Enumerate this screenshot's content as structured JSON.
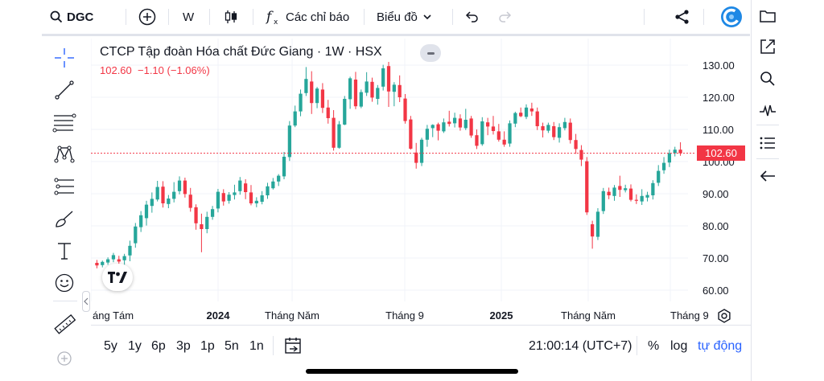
{
  "topbar": {
    "symbol": "DGC",
    "interval": "W",
    "indicators_label": "Các chỉ báo",
    "layout_label": "Biểu đồ"
  },
  "legend": {
    "title": "CTCP Tập đoàn Hóa chất Đức Giang · 1W · HSX",
    "last": "102.60",
    "change": "−1.10",
    "change_pct": "(−1.06%)"
  },
  "price_tag": "102.60",
  "logo_text": "𝟕𝐕",
  "bottombar": {
    "ranges": [
      "5y",
      "1y",
      "6p",
      "3p",
      "1p",
      "5n",
      "1n"
    ],
    "clock": "21:00:14 (UTC+7)",
    "percent_label": "%",
    "log_label": "log",
    "auto_label": "tự động"
  },
  "colors": {
    "up": "#26a69a",
    "down": "#f23645",
    "text": "#131722",
    "grid": "#f0f3fa",
    "brand": "#2962ff"
  },
  "icons": {
    "left_tools": [
      "crosshair-icon",
      "trendline-icon",
      "fib-retracement-icon",
      "pattern-icon",
      "projection-icon",
      "brush-icon",
      "text-icon",
      "emoji-icon",
      "ruler-icon",
      "zoom-in-icon"
    ],
    "right_tools": [
      "folder-icon",
      "external-link-icon",
      "search-icon",
      "pulse-icon",
      "list-icon",
      "arrow-left-icon"
    ]
  },
  "chart_data": {
    "type": "candlestick",
    "title": "CTCP Tập đoàn Hóa chất Đức Giang · 1W · HSX",
    "y_ticks": [
      "130.00",
      "120.00",
      "110.00",
      "100.00",
      "90.00",
      "80.00",
      "70.00",
      "60.00"
    ],
    "ylim": [
      57.5,
      132.5
    ],
    "x_labels": [
      "áng Tám",
      "2024",
      "Tháng Năm",
      "Tháng 9",
      "2025",
      "Tháng Năm",
      "Tháng 9"
    ],
    "last_price": 102.6,
    "grid": true,
    "candles": [
      [
        68.5,
        69.4,
        66.8,
        67.7
      ],
      [
        67.8,
        69.2,
        67.1,
        68.8
      ],
      [
        68.6,
        70.2,
        67.9,
        69.6
      ],
      [
        69.6,
        71.6,
        68.7,
        70.9
      ],
      [
        69.6,
        70.7,
        68.1,
        68.9
      ],
      [
        69.3,
        71.3,
        67.5,
        70.6
      ],
      [
        70.8,
        75.4,
        69.0,
        73.8
      ],
      [
        74.6,
        80.9,
        73.2,
        79.8
      ],
      [
        79.6,
        84.6,
        78.1,
        83.3
      ],
      [
        82.4,
        87.8,
        80.1,
        86.6
      ],
      [
        86.2,
        90.4,
        84.1,
        88.4
      ],
      [
        88.2,
        94.0,
        87.6,
        92.1
      ],
      [
        92.2,
        93.9,
        85.7,
        87.0
      ],
      [
        86.8,
        89.6,
        85.5,
        88.5
      ],
      [
        88.4,
        93.6,
        87.3,
        90.6
      ],
      [
        90.8,
        95.4,
        89.8,
        94.1
      ],
      [
        94.1,
        95.0,
        88.8,
        89.9
      ],
      [
        89.7,
        91.8,
        84.4,
        85.6
      ],
      [
        85.8,
        86.7,
        78.8,
        80.8
      ],
      [
        80.5,
        83.8,
        71.8,
        79.0
      ],
      [
        79.0,
        84.4,
        77.7,
        82.8
      ],
      [
        82.8,
        86.2,
        81.9,
        85.2
      ],
      [
        85.4,
        91.5,
        84.2,
        90.6
      ],
      [
        90.2,
        91.4,
        86.3,
        87.6
      ],
      [
        87.8,
        90.5,
        86.9,
        89.7
      ],
      [
        89.6,
        92.8,
        88.2,
        90.4
      ],
      [
        90.8,
        95.2,
        89.7,
        94.1
      ],
      [
        93.2,
        94.5,
        88.3,
        90.5
      ],
      [
        90.4,
        92.7,
        86.4,
        87.0
      ],
      [
        87.0,
        88.9,
        85.8,
        87.8
      ],
      [
        87.5,
        90.8,
        86.7,
        89.5
      ],
      [
        89.5,
        93.4,
        88.4,
        92.3
      ],
      [
        91.7,
        94.9,
        91.3,
        93.8
      ],
      [
        93.8,
        96.1,
        92.4,
        95.6
      ],
      [
        95.4,
        103.0,
        94.5,
        101.5
      ],
      [
        101.4,
        112.6,
        100.2,
        111.2
      ],
      [
        111.2,
        117.4,
        110.7,
        115.6
      ],
      [
        115.6,
        122.4,
        114.1,
        121.1
      ],
      [
        121.3,
        129.4,
        120.4,
        125.7
      ],
      [
        124.9,
        128.1,
        114.8,
        118.2
      ],
      [
        118.2,
        123.2,
        116.6,
        122.7
      ],
      [
        122.4,
        124.4,
        115.1,
        116.7
      ],
      [
        116.8,
        119.2,
        111.8,
        113.5
      ],
      [
        113.6,
        116.0,
        103.4,
        104.3
      ],
      [
        104.3,
        112.6,
        104.0,
        111.6
      ],
      [
        111.5,
        120.4,
        111.3,
        119.5
      ],
      [
        119.4,
        126.4,
        116.4,
        125.9
      ],
      [
        125.5,
        127.9,
        116.3,
        117.2
      ],
      [
        117.1,
        122.4,
        116.6,
        121.6
      ],
      [
        121.4,
        127.8,
        120.4,
        124.9
      ],
      [
        124.8,
        126.1,
        118.6,
        119.9
      ],
      [
        119.5,
        123.8,
        117.7,
        122.9
      ],
      [
        123.3,
        130.1,
        122.1,
        129.0
      ],
      [
        129.7,
        131.0,
        117.0,
        121.8
      ],
      [
        121.7,
        124.7,
        117.2,
        123.9
      ],
      [
        123.8,
        126.8,
        118.5,
        120.0
      ],
      [
        119.6,
        121.0,
        111.8,
        112.6
      ],
      [
        113.1,
        114.2,
        103.7,
        104.0
      ],
      [
        102.8,
        105.8,
        97.8,
        99.6
      ],
      [
        99.6,
        107.4,
        98.6,
        106.8
      ],
      [
        106.8,
        111.4,
        104.6,
        110.2
      ],
      [
        110.4,
        111.6,
        107.6,
        111.4
      ],
      [
        111.6,
        112.1,
        106.6,
        109.6
      ],
      [
        109.4,
        113.4,
        108.9,
        112.2
      ],
      [
        112.4,
        115.8,
        110.9,
        111.7
      ],
      [
        111.9,
        115.2,
        110.6,
        113.6
      ],
      [
        113.4,
        114.7,
        109.6,
        110.6
      ],
      [
        110.4,
        116.4,
        109.8,
        113.0
      ],
      [
        113.4,
        114.2,
        107.4,
        108.1
      ],
      [
        108.2,
        110.0,
        103.9,
        104.9
      ],
      [
        105.4,
        113.8,
        104.9,
        112.5
      ],
      [
        112.2,
        113.6,
        108.2,
        110.9
      ],
      [
        110.9,
        114.2,
        108.4,
        109.5
      ],
      [
        109.4,
        111.7,
        106.2,
        106.8
      ],
      [
        106.8,
        109.4,
        104.6,
        105.3
      ],
      [
        105.6,
        112.8,
        104.6,
        111.9
      ],
      [
        111.8,
        115.5,
        110.7,
        115.1
      ],
      [
        115.2,
        116.8,
        113.8,
        114.1
      ],
      [
        113.9,
        117.8,
        113.2,
        116.8
      ],
      [
        116.5,
        118.3,
        114.2,
        115.6
      ],
      [
        115.6,
        116.8,
        109.8,
        111.0
      ],
      [
        111.0,
        112.1,
        107.5,
        109.7
      ],
      [
        109.6,
        112.1,
        108.9,
        111.4
      ],
      [
        111.0,
        112.3,
        106.7,
        107.6
      ],
      [
        107.4,
        111.9,
        105.9,
        110.7
      ],
      [
        110.4,
        113.6,
        109.7,
        112.3
      ],
      [
        112.1,
        113.4,
        105.6,
        106.7
      ],
      [
        106.7,
        108.6,
        102.4,
        103.9
      ],
      [
        103.6,
        105.1,
        98.6,
        100.6
      ],
      [
        100.1,
        101.4,
        83.4,
        84.2
      ],
      [
        80.5,
        81.6,
        72.9,
        76.7
      ],
      [
        76.6,
        85.5,
        75.6,
        84.4
      ],
      [
        84.6,
        91.8,
        83.7,
        90.8
      ],
      [
        90.6,
        91.9,
        88.3,
        89.5
      ],
      [
        89.3,
        92.7,
        87.8,
        91.9
      ],
      [
        92.4,
        95.6,
        89.0,
        91.2
      ],
      [
        91.1,
        92.8,
        90.4,
        91.7
      ],
      [
        91.6,
        92.9,
        87.6,
        88.1
      ],
      [
        88.1,
        89.8,
        86.8,
        87.8
      ],
      [
        87.6,
        91.4,
        86.5,
        89.3
      ],
      [
        88.8,
        90.6,
        87.6,
        89.6
      ],
      [
        89.5,
        94.2,
        88.2,
        93.3
      ],
      [
        93.4,
        98.9,
        92.4,
        97.1
      ],
      [
        97.3,
        101.4,
        96.2,
        99.6
      ],
      [
        99.7,
        103.7,
        98.3,
        102.6
      ],
      [
        102.6,
        104.6,
        101.6,
        103.7
      ],
      [
        103.7,
        106.0,
        101.8,
        102.6
      ]
    ]
  }
}
